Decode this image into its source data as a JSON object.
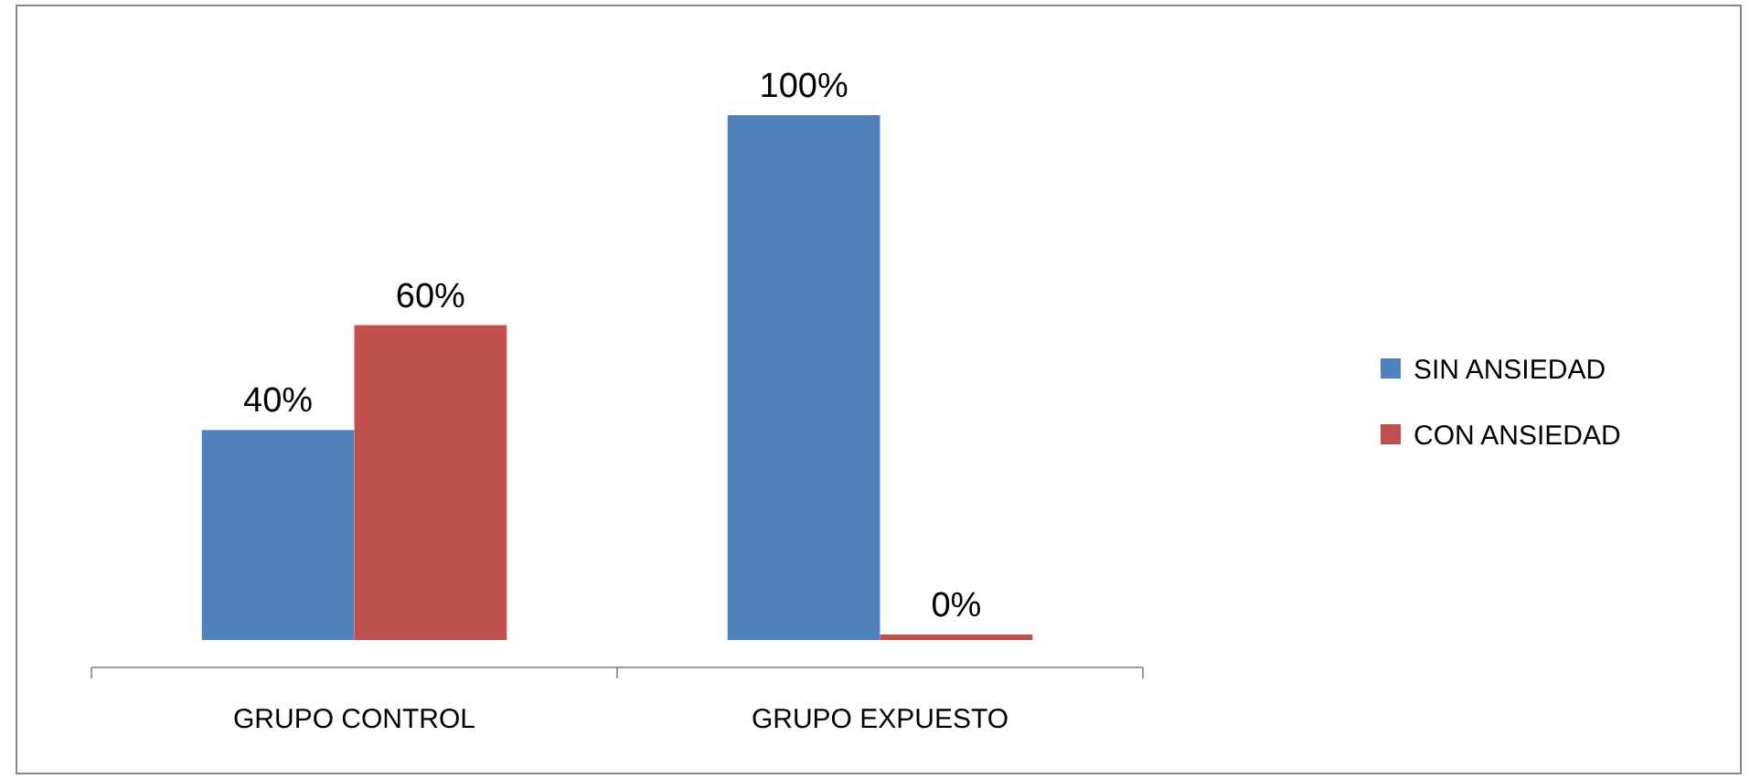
{
  "chart_data": {
    "type": "bar",
    "categories": [
      "GRUPO CONTROL",
      "GRUPO EXPUESTO"
    ],
    "legend": "right",
    "ylim": [
      0,
      100
    ],
    "series": [
      {
        "name": "SIN ANSIEDAD",
        "color": "#4f81bd",
        "values": [
          40,
          100
        ],
        "value_labels": [
          "40%",
          "100%"
        ]
      },
      {
        "name": "CON ANSIEDAD",
        "color": "#c0504d",
        "values": [
          60,
          0
        ],
        "value_labels": [
          "60%",
          "0%"
        ]
      }
    ]
  }
}
